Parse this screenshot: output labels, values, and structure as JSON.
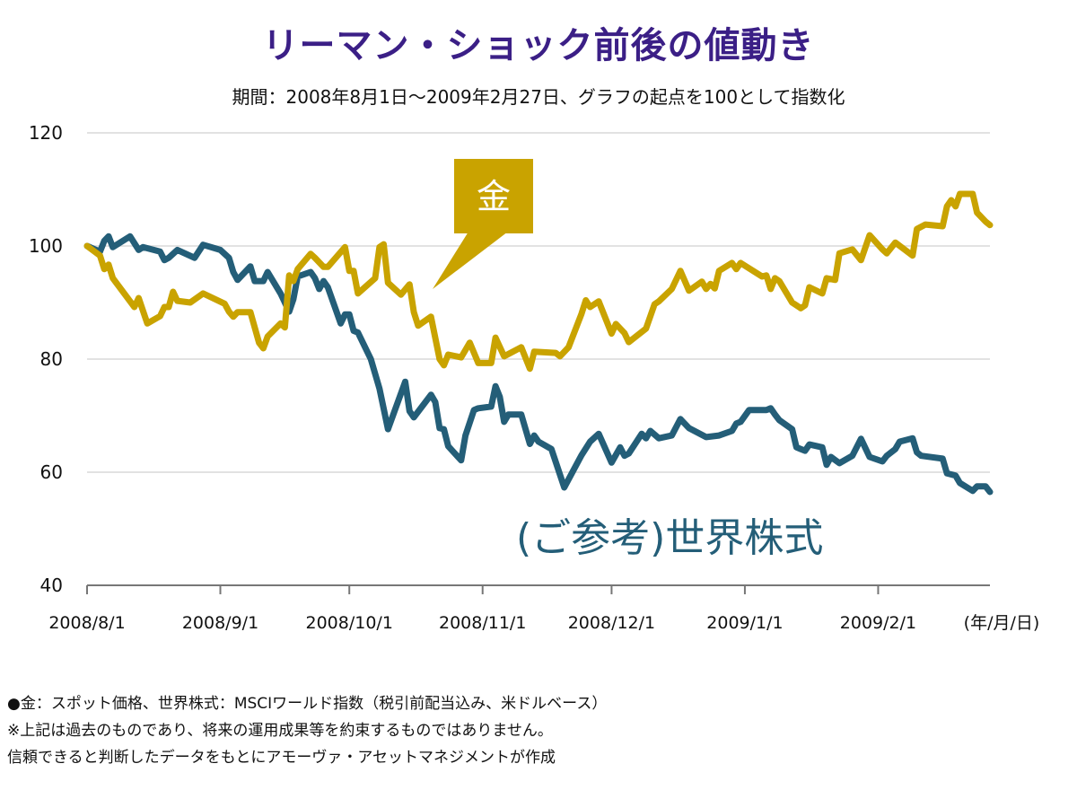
{
  "title": "リーマン・ショック前後の値動き",
  "subtitle": "期間：2008年8月1日〜2009年2月27日、グラフの起点を100として指数化",
  "chart_data": {
    "type": "line",
    "title": "リーマン・ショック前後の値動き",
    "subtitle": "期間：2008年8月1日〜2009年2月27日、グラフの起点を100として指数化",
    "xlabel": "(年/月/日)",
    "ylabel": "",
    "xlim": [
      "2008-08-01",
      "2009-02-27"
    ],
    "ylim": [
      40,
      120
    ],
    "yticks": [
      40,
      60,
      80,
      100,
      120
    ],
    "xticks": [
      "2008-08-01",
      "2008-09-01",
      "2008-10-01",
      "2008-11-01",
      "2008-12-01",
      "2009-01-01",
      "2009-02-01"
    ],
    "xtick_labels": [
      "2008/8/1",
      "2008/9/1",
      "2008/10/1",
      "2008/11/1",
      "2008/12/1",
      "2009/1/1",
      "2009/2/1"
    ],
    "grid": "horizontal",
    "series": [
      {
        "name": "金",
        "color": "#c9a300",
        "label_style": "callout-box",
        "points": [
          [
            "2008-08-01",
            100.0
          ],
          [
            "2008-08-04",
            98.3
          ],
          [
            "2008-08-05",
            95.9
          ],
          [
            "2008-08-06",
            96.7
          ],
          [
            "2008-08-07",
            94.3
          ],
          [
            "2008-08-12",
            89.2
          ],
          [
            "2008-08-13",
            90.8
          ],
          [
            "2008-08-15",
            86.3
          ],
          [
            "2008-08-18",
            87.6
          ],
          [
            "2008-08-19",
            89.2
          ],
          [
            "2008-08-20",
            89.2
          ],
          [
            "2008-08-21",
            91.9
          ],
          [
            "2008-08-22",
            90.3
          ],
          [
            "2008-08-25",
            90.0
          ],
          [
            "2008-08-28",
            91.6
          ],
          [
            "2008-09-02",
            89.8
          ],
          [
            "2008-09-03",
            88.4
          ],
          [
            "2008-09-04",
            87.5
          ],
          [
            "2008-09-05",
            88.3
          ],
          [
            "2008-09-08",
            88.3
          ],
          [
            "2008-09-10",
            82.9
          ],
          [
            "2008-09-11",
            81.9
          ],
          [
            "2008-09-12",
            84.0
          ],
          [
            "2008-09-15",
            86.3
          ],
          [
            "2008-09-16",
            85.6
          ],
          [
            "2008-09-17",
            94.8
          ],
          [
            "2008-09-18",
            93.8
          ],
          [
            "2008-09-19",
            95.9
          ],
          [
            "2008-09-22",
            98.6
          ],
          [
            "2008-09-23",
            97.9
          ],
          [
            "2008-09-25",
            96.3
          ],
          [
            "2008-09-26",
            96.3
          ],
          [
            "2008-09-30",
            99.8
          ],
          [
            "2008-10-01",
            95.6
          ],
          [
            "2008-10-02",
            95.6
          ],
          [
            "2008-10-03",
            91.6
          ],
          [
            "2008-10-07",
            94.3
          ],
          [
            "2008-10-08",
            99.8
          ],
          [
            "2008-10-09",
            100.3
          ],
          [
            "2008-10-10",
            93.5
          ],
          [
            "2008-10-13",
            91.4
          ],
          [
            "2008-10-15",
            93.2
          ],
          [
            "2008-10-16",
            88.3
          ],
          [
            "2008-10-17",
            85.9
          ],
          [
            "2008-10-20",
            87.5
          ],
          [
            "2008-10-22",
            80.0
          ],
          [
            "2008-10-23",
            78.9
          ],
          [
            "2008-10-24",
            80.8
          ],
          [
            "2008-10-27",
            80.3
          ],
          [
            "2008-10-29",
            82.9
          ],
          [
            "2008-10-31",
            79.3
          ],
          [
            "2008-11-03",
            79.3
          ],
          [
            "2008-11-04",
            83.8
          ],
          [
            "2008-11-06",
            80.5
          ],
          [
            "2008-11-10",
            82.1
          ],
          [
            "2008-11-12",
            78.3
          ],
          [
            "2008-11-13",
            81.3
          ],
          [
            "2008-11-18",
            81.1
          ],
          [
            "2008-11-19",
            80.5
          ],
          [
            "2008-11-21",
            82.1
          ],
          [
            "2008-11-24",
            88.0
          ],
          [
            "2008-11-25",
            90.4
          ],
          [
            "2008-11-26",
            89.2
          ],
          [
            "2008-11-28",
            90.2
          ],
          [
            "2008-12-01",
            84.5
          ],
          [
            "2008-12-02",
            86.2
          ],
          [
            "2008-12-04",
            84.6
          ],
          [
            "2008-12-05",
            83.0
          ],
          [
            "2008-12-09",
            85.4
          ],
          [
            "2008-12-11",
            89.7
          ],
          [
            "2008-12-12",
            90.2
          ],
          [
            "2008-12-15",
            92.4
          ],
          [
            "2008-12-17",
            95.6
          ],
          [
            "2008-12-19",
            92.1
          ],
          [
            "2008-12-22",
            93.7
          ],
          [
            "2008-12-23",
            92.4
          ],
          [
            "2008-12-24",
            93.3
          ],
          [
            "2008-12-25",
            92.5
          ],
          [
            "2008-12-26",
            95.6
          ],
          [
            "2008-12-29",
            97.0
          ],
          [
            "2008-12-30",
            95.9
          ],
          [
            "2008-12-31",
            97.0
          ],
          [
            "2009-01-05",
            94.6
          ],
          [
            "2009-01-06",
            94.8
          ],
          [
            "2009-01-07",
            92.4
          ],
          [
            "2009-01-08",
            94.3
          ],
          [
            "2009-01-09",
            93.8
          ],
          [
            "2009-01-12",
            90.0
          ],
          [
            "2009-01-14",
            89.0
          ],
          [
            "2009-01-15",
            89.5
          ],
          [
            "2009-01-16",
            92.7
          ],
          [
            "2009-01-19",
            91.6
          ],
          [
            "2009-01-20",
            94.3
          ],
          [
            "2009-01-22",
            94.0
          ],
          [
            "2009-01-23",
            98.7
          ],
          [
            "2009-01-26",
            99.4
          ],
          [
            "2009-01-28",
            97.5
          ],
          [
            "2009-01-30",
            101.9
          ],
          [
            "2009-02-02",
            99.4
          ],
          [
            "2009-02-03",
            98.7
          ],
          [
            "2009-02-05",
            100.6
          ],
          [
            "2009-02-09",
            98.3
          ],
          [
            "2009-02-10",
            103.0
          ],
          [
            "2009-02-12",
            103.8
          ],
          [
            "2009-02-16",
            103.5
          ],
          [
            "2009-02-17",
            107.0
          ],
          [
            "2009-02-18",
            108.1
          ],
          [
            "2009-02-19",
            107.0
          ],
          [
            "2009-02-20",
            109.2
          ],
          [
            "2009-02-23",
            109.2
          ],
          [
            "2009-02-24",
            105.9
          ],
          [
            "2009-02-26",
            104.3
          ],
          [
            "2009-02-27",
            103.7
          ]
        ]
      },
      {
        "name": "(ご参考)世界株式",
        "color": "#245e78",
        "label_style": "text",
        "points": [
          [
            "2008-08-01",
            100.0
          ],
          [
            "2008-08-04",
            99.0
          ],
          [
            "2008-08-05",
            100.9
          ],
          [
            "2008-08-06",
            101.7
          ],
          [
            "2008-08-07",
            99.8
          ],
          [
            "2008-08-11",
            101.7
          ],
          [
            "2008-08-13",
            99.3
          ],
          [
            "2008-08-14",
            99.8
          ],
          [
            "2008-08-18",
            99.0
          ],
          [
            "2008-08-19",
            97.5
          ],
          [
            "2008-08-20",
            97.9
          ],
          [
            "2008-08-22",
            99.3
          ],
          [
            "2008-08-26",
            97.9
          ],
          [
            "2008-08-28",
            100.2
          ],
          [
            "2008-09-01",
            99.3
          ],
          [
            "2008-09-03",
            97.9
          ],
          [
            "2008-09-04",
            95.4
          ],
          [
            "2008-09-05",
            94.0
          ],
          [
            "2008-09-08",
            96.4
          ],
          [
            "2008-09-09",
            93.8
          ],
          [
            "2008-09-11",
            93.8
          ],
          [
            "2008-09-12",
            95.4
          ],
          [
            "2008-09-15",
            91.6
          ],
          [
            "2008-09-17",
            88.4
          ],
          [
            "2008-09-18",
            90.6
          ],
          [
            "2008-09-19",
            94.6
          ],
          [
            "2008-09-22",
            95.4
          ],
          [
            "2008-09-23",
            94.3
          ],
          [
            "2008-09-24",
            92.4
          ],
          [
            "2008-09-25",
            93.8
          ],
          [
            "2008-09-26",
            92.7
          ],
          [
            "2008-09-29",
            86.3
          ],
          [
            "2008-09-30",
            87.9
          ],
          [
            "2008-10-01",
            87.9
          ],
          [
            "2008-10-02",
            85.0
          ],
          [
            "2008-10-03",
            84.7
          ],
          [
            "2008-10-06",
            80.0
          ],
          [
            "2008-10-08",
            74.8
          ],
          [
            "2008-10-10",
            67.6
          ],
          [
            "2008-10-14",
            76.0
          ],
          [
            "2008-10-15",
            70.8
          ],
          [
            "2008-10-16",
            69.7
          ],
          [
            "2008-10-20",
            73.7
          ],
          [
            "2008-10-21",
            72.4
          ],
          [
            "2008-10-22",
            67.8
          ],
          [
            "2008-10-23",
            67.6
          ],
          [
            "2008-10-24",
            64.6
          ],
          [
            "2008-10-27",
            62.1
          ],
          [
            "2008-10-28",
            66.5
          ],
          [
            "2008-10-30",
            71.0
          ],
          [
            "2008-10-31",
            71.3
          ],
          [
            "2008-11-03",
            71.6
          ],
          [
            "2008-11-04",
            75.2
          ],
          [
            "2008-11-05",
            73.3
          ],
          [
            "2008-11-06",
            68.9
          ],
          [
            "2008-11-07",
            70.2
          ],
          [
            "2008-11-10",
            70.2
          ],
          [
            "2008-11-12",
            65.0
          ],
          [
            "2008-11-13",
            66.5
          ],
          [
            "2008-11-14",
            65.4
          ],
          [
            "2008-11-17",
            64.1
          ],
          [
            "2008-11-20",
            57.3
          ],
          [
            "2008-11-24",
            63.0
          ],
          [
            "2008-11-26",
            65.4
          ],
          [
            "2008-11-28",
            66.8
          ],
          [
            "2008-12-01",
            61.7
          ],
          [
            "2008-12-03",
            64.4
          ],
          [
            "2008-12-04",
            62.9
          ],
          [
            "2008-12-05",
            63.3
          ],
          [
            "2008-12-08",
            66.8
          ],
          [
            "2008-12-09",
            66.0
          ],
          [
            "2008-12-10",
            67.3
          ],
          [
            "2008-12-12",
            66.0
          ],
          [
            "2008-12-15",
            66.5
          ],
          [
            "2008-12-17",
            69.4
          ],
          [
            "2008-12-19",
            67.8
          ],
          [
            "2008-12-23",
            66.2
          ],
          [
            "2008-12-26",
            66.5
          ],
          [
            "2008-12-29",
            67.3
          ],
          [
            "2008-12-30",
            68.6
          ],
          [
            "2008-12-31",
            68.9
          ],
          [
            "2009-01-02",
            71.0
          ],
          [
            "2009-01-06",
            71.0
          ],
          [
            "2009-01-07",
            71.3
          ],
          [
            "2009-01-08",
            70.2
          ],
          [
            "2009-01-09",
            69.2
          ],
          [
            "2009-01-12",
            67.6
          ],
          [
            "2009-01-13",
            64.4
          ],
          [
            "2009-01-15",
            63.8
          ],
          [
            "2009-01-16",
            64.9
          ],
          [
            "2009-01-19",
            64.4
          ],
          [
            "2009-01-20",
            61.3
          ],
          [
            "2009-01-21",
            62.7
          ],
          [
            "2009-01-23",
            61.6
          ],
          [
            "2009-01-26",
            62.9
          ],
          [
            "2009-01-28",
            65.9
          ],
          [
            "2009-01-30",
            62.7
          ],
          [
            "2009-02-02",
            61.9
          ],
          [
            "2009-02-03",
            62.9
          ],
          [
            "2009-02-05",
            64.1
          ],
          [
            "2009-02-06",
            65.4
          ],
          [
            "2009-02-09",
            66.0
          ],
          [
            "2009-02-10",
            63.5
          ],
          [
            "2009-02-11",
            62.9
          ],
          [
            "2009-02-16",
            62.4
          ],
          [
            "2009-02-17",
            59.8
          ],
          [
            "2009-02-19",
            59.4
          ],
          [
            "2009-02-20",
            58.1
          ],
          [
            "2009-02-23",
            56.7
          ],
          [
            "2009-02-24",
            57.5
          ],
          [
            "2009-02-26",
            57.5
          ],
          [
            "2009-02-27",
            56.5
          ]
        ]
      }
    ]
  },
  "footnotes": [
    "●金：スポット価格、世界株式：MSCIワールド指数（税引前配当込み、米ドルベース）",
    "※上記は過去のものであり、将来の運用成果等を約束するものではありません。",
    "信頼できると判断したデータをもとにアモーヴァ・アセットマネジメントが作成"
  ]
}
